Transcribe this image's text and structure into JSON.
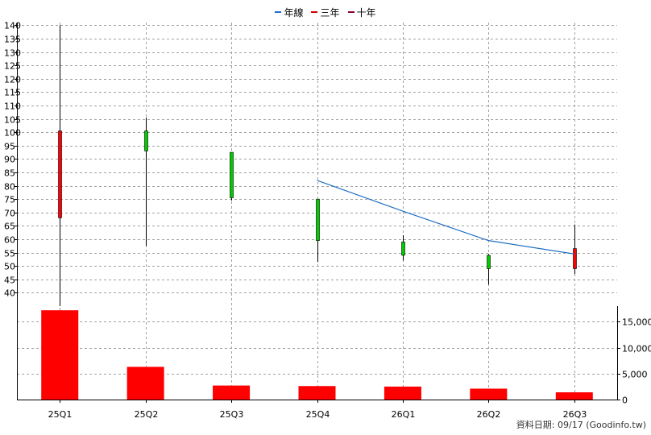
{
  "chart_data": {
    "type": "candlestick",
    "categories": [
      "25Q1",
      "25Q2",
      "25Q3",
      "25Q4",
      "26Q1",
      "26Q2",
      "26Q3"
    ],
    "legend": [
      {
        "name": "年線",
        "color": "#1f6fc5"
      },
      {
        "name": "三年",
        "color": "#d40000"
      },
      {
        "name": "十年",
        "color": "#8b0030"
      }
    ],
    "price": {
      "ylim": [
        35,
        141
      ],
      "ticks": [
        40,
        45,
        50,
        55,
        60,
        65,
        70,
        75,
        80,
        85,
        90,
        95,
        100,
        105,
        110,
        115,
        120,
        125,
        130,
        135,
        140
      ],
      "candles": [
        {
          "open": 68,
          "close": 100.5,
          "high": 140,
          "low": 35,
          "direction": "up"
        },
        {
          "open": 100.5,
          "close": 93,
          "high": 105.5,
          "low": 57.5,
          "direction": "down"
        },
        {
          "open": 92.5,
          "close": 75.5,
          "high": 92.5,
          "low": 74.5,
          "direction": "down"
        },
        {
          "open": 75,
          "close": 59.5,
          "high": 75,
          "low": 51.5,
          "direction": "down"
        },
        {
          "open": 59,
          "close": 54,
          "high": 61.5,
          "low": 52,
          "direction": "down"
        },
        {
          "open": 54,
          "close": 49,
          "high": 54.5,
          "low": 43,
          "direction": "down"
        },
        {
          "open": 49,
          "close": 56.5,
          "high": 65.5,
          "low": 47,
          "direction": "up"
        }
      ],
      "year_line": {
        "name": "年線",
        "points": [
          {
            "category": "25Q4",
            "value": 82
          },
          {
            "category": "26Q1",
            "value": 70.5
          },
          {
            "category": "26Q2",
            "value": 59.5
          },
          {
            "category": "26Q3",
            "value": 54.5
          }
        ]
      }
    },
    "volume": {
      "ylim": [
        0,
        18000
      ],
      "ticks": [
        0,
        5000,
        10000,
        15000
      ],
      "tick_labels": [
        "0",
        "5,000",
        "10,000",
        "15,000"
      ],
      "values": [
        17200,
        6300,
        2700,
        2600,
        2500,
        2100,
        1400
      ]
    },
    "grid": true,
    "colors": {
      "up": "#ff0000",
      "down": "#00cc00",
      "volume": "#ff0000",
      "year_line": "#1f6fc5"
    }
  },
  "footer": {
    "source": "資料日期: 09/17  (Goodinfo.tw)"
  }
}
